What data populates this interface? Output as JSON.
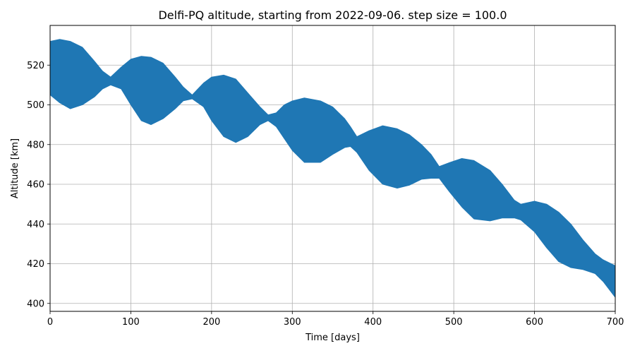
{
  "chart_data": {
    "type": "area",
    "title": "Delfi-PQ altitude, starting from 2022-09-06. step size = 100.0",
    "xlabel": "Time [days]",
    "ylabel": "Altitude [km]",
    "xlim": [
      0,
      700
    ],
    "ylim": [
      396,
      540
    ],
    "xticks": [
      0,
      100,
      200,
      300,
      400,
      500,
      600,
      700
    ],
    "yticks": [
      400,
      420,
      440,
      460,
      480,
      500,
      520
    ],
    "grid": true,
    "legend": "none",
    "series": [
      {
        "color": "#1f77b4",
        "x": [
          0,
          12,
          25,
          40,
          55,
          65,
          75,
          88,
          100,
          113,
          125,
          140,
          155,
          165,
          176,
          190,
          200,
          215,
          230,
          245,
          260,
          270,
          280,
          290,
          300,
          315,
          335,
          350,
          365,
          372,
          380,
          395,
          412,
          430,
          445,
          460,
          472,
          482,
          495,
          510,
          525,
          545,
          560,
          575,
          583,
          600,
          615,
          630,
          645,
          660,
          675,
          685,
          700
        ],
        "upper": [
          532,
          533,
          532,
          529,
          522,
          517,
          514,
          519,
          523,
          524.5,
          524,
          521,
          514,
          509,
          505,
          511,
          514,
          515,
          513,
          506,
          499,
          495,
          496,
          500,
          502,
          503.5,
          502,
          499,
          493,
          489,
          484,
          487,
          489.5,
          488,
          485,
          480,
          475,
          469,
          471,
          473,
          472,
          467,
          460,
          452,
          450,
          451.5,
          450,
          446,
          440,
          432,
          425,
          422,
          419
        ],
        "lower": [
          505,
          501,
          498,
          500,
          504,
          508,
          510,
          508,
          500,
          492,
          490,
          493,
          498,
          502,
          503,
          499,
          492,
          484,
          481,
          484,
          490,
          492,
          489,
          483,
          477,
          471,
          471,
          475,
          478.5,
          479,
          476,
          467,
          460,
          458,
          459.5,
          462.5,
          463,
          463,
          456,
          448.5,
          442.5,
          441.5,
          443,
          443,
          442,
          436,
          428,
          421,
          418,
          417,
          415,
          411,
          403
        ]
      }
    ]
  }
}
